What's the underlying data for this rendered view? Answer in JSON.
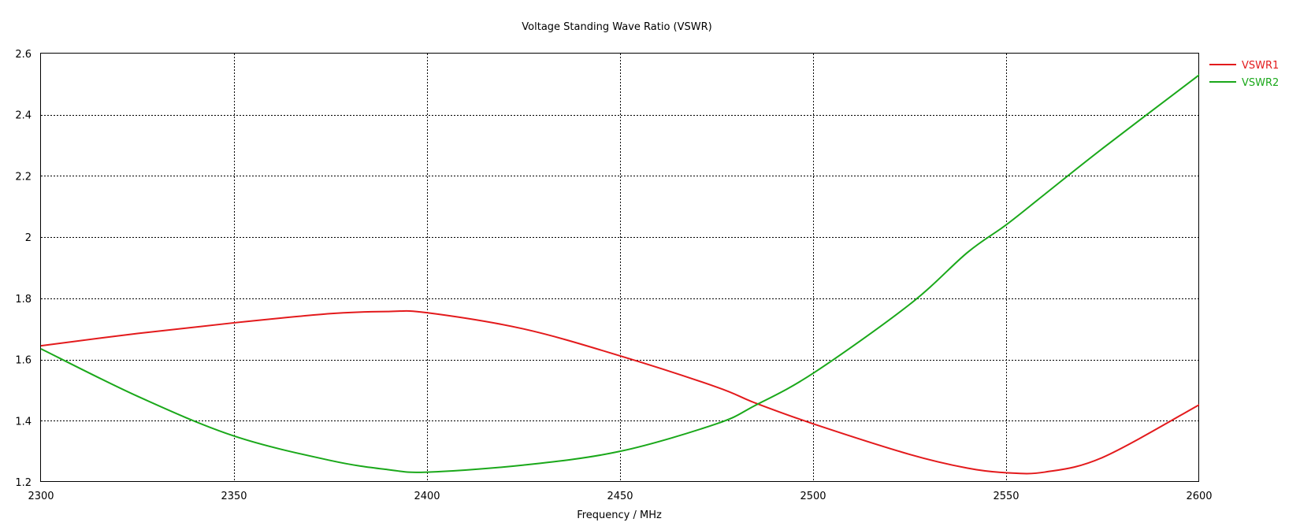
{
  "chart_data": {
    "type": "line",
    "title": "Voltage Standing Wave Ratio (VSWR)",
    "xlabel": "Frequency / MHz",
    "ylabel": "",
    "xlim": [
      2300,
      2600
    ],
    "ylim": [
      1.2,
      2.6
    ],
    "xticks": [
      "2300",
      "2350",
      "2400",
      "2450",
      "2500",
      "2550",
      "2600"
    ],
    "yticks": [
      "1.2",
      "1.4",
      "1.6",
      "1.8",
      "2",
      "2.2",
      "2.4",
      "2.6"
    ],
    "grid": true,
    "legend_position": "top-right, outside plot",
    "x": [
      2300,
      2325,
      2350,
      2375,
      2390,
      2400,
      2425,
      2450,
      2475,
      2485,
      2500,
      2525,
      2540,
      2550,
      2560,
      2575,
      2600
    ],
    "series": [
      {
        "name": "VSWR1",
        "color": "#e31a1c",
        "values": [
          1.645,
          1.685,
          1.72,
          1.75,
          1.757,
          1.753,
          1.7,
          1.612,
          1.51,
          1.458,
          1.39,
          1.29,
          1.245,
          1.23,
          1.232,
          1.28,
          1.452
        ]
      },
      {
        "name": "VSWR2",
        "color": "#1aa81a",
        "values": [
          1.635,
          1.48,
          1.35,
          1.27,
          1.24,
          1.232,
          1.255,
          1.3,
          1.39,
          1.45,
          1.555,
          1.78,
          1.95,
          2.04,
          2.14,
          2.29,
          2.53
        ]
      }
    ]
  }
}
